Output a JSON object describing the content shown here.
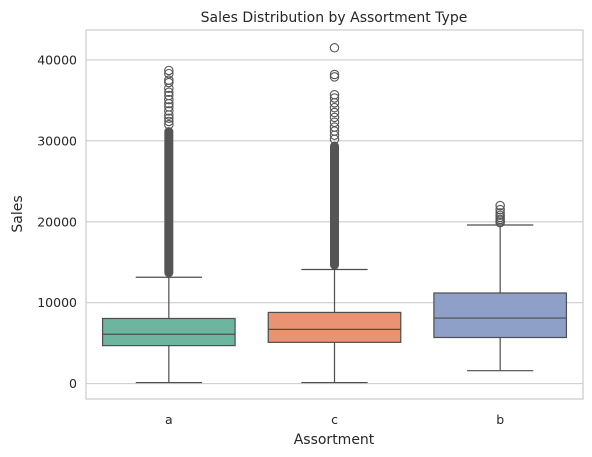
{
  "chart_data": {
    "type": "box",
    "title": "Sales Distribution by Assortment Type",
    "xlabel": "Assortment",
    "ylabel": "Sales",
    "ylim": [
      -1900,
      43700
    ],
    "yticks": [
      0,
      10000,
      20000,
      30000,
      40000
    ],
    "grid": "horizontal",
    "categories": [
      "a",
      "c",
      "b"
    ],
    "colors": {
      "a": "#6eb59f",
      "c": "#e99373",
      "b": "#8ea0c8"
    },
    "boxes": [
      {
        "category": "a",
        "whisker_low": 133,
        "q1": 4700,
        "median": 6100,
        "q3": 8050,
        "whisker_high": 13150,
        "outlier_band": [
          13150,
          31700
        ],
        "outliers": [
          32000,
          32400,
          32800,
          33200,
          33700,
          34200,
          34600,
          35100,
          35600,
          36000,
          36500,
          37200,
          37500,
          38300,
          38700
        ]
      },
      {
        "category": "c",
        "whisker_low": 133,
        "q1": 5100,
        "median": 6700,
        "q3": 8800,
        "whisker_high": 14100,
        "outlier_band": [
          14100,
          29900
        ],
        "outliers": [
          30200,
          30700,
          31200,
          31700,
          32300,
          32900,
          33500,
          34100,
          34700,
          35300,
          35700,
          37900,
          38200,
          41500
        ]
      },
      {
        "category": "b",
        "whisker_low": 1600,
        "q1": 5700,
        "median": 8100,
        "q3": 11200,
        "whisker_high": 19600,
        "outlier_band": [],
        "outliers": [
          19900,
          20100,
          20300,
          20550,
          20800,
          21100,
          21500,
          22000
        ]
      }
    ]
  }
}
